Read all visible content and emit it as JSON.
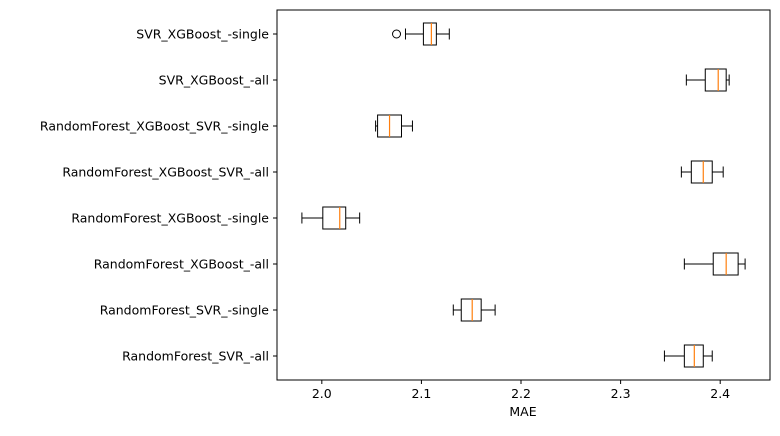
{
  "chart_data": {
    "type": "boxplot",
    "orientation": "horizontal",
    "xlabel": "MAE",
    "xlim": [
      1.955,
      2.45
    ],
    "xticks": [
      2.0,
      2.1,
      2.2,
      2.3,
      2.4
    ],
    "xtick_labels": [
      "2.0",
      "2.1",
      "2.2",
      "2.3",
      "2.4"
    ],
    "grid": false,
    "box_color": "#000000",
    "median_color": "#ff7f0e",
    "categories": [
      "SVR_XGBoost_-single",
      "SVR_XGBoost_-all",
      "RandomForest_XGBoost_SVR_-single",
      "RandomForest_XGBoost_SVR_-all",
      "RandomForest_XGBoost_-single",
      "RandomForest_XGBoost_-all",
      "RandomForest_SVR_-single",
      "RandomForest_SVR_-all"
    ],
    "boxes": [
      {
        "whisker_low": 2.084,
        "q1": 2.102,
        "median": 2.11,
        "q3": 2.115,
        "whisker_high": 2.128,
        "outliers": [
          2.075
        ]
      },
      {
        "whisker_low": 2.366,
        "q1": 2.385,
        "median": 2.398,
        "q3": 2.406,
        "whisker_high": 2.409,
        "outliers": []
      },
      {
        "whisker_low": 2.054,
        "q1": 2.056,
        "median": 2.068,
        "q3": 2.08,
        "whisker_high": 2.091,
        "outliers": []
      },
      {
        "whisker_low": 2.361,
        "q1": 2.371,
        "median": 2.383,
        "q3": 2.392,
        "whisker_high": 2.403,
        "outliers": []
      },
      {
        "whisker_low": 1.98,
        "q1": 2.001,
        "median": 2.018,
        "q3": 2.024,
        "whisker_high": 2.038,
        "outliers": []
      },
      {
        "whisker_low": 2.364,
        "q1": 2.393,
        "median": 2.406,
        "q3": 2.418,
        "whisker_high": 2.425,
        "outliers": []
      },
      {
        "whisker_low": 2.132,
        "q1": 2.14,
        "median": 2.151,
        "q3": 2.16,
        "whisker_high": 2.174,
        "outliers": []
      },
      {
        "whisker_low": 2.344,
        "q1": 2.364,
        "median": 2.374,
        "q3": 2.383,
        "whisker_high": 2.392,
        "outliers": []
      }
    ]
  }
}
